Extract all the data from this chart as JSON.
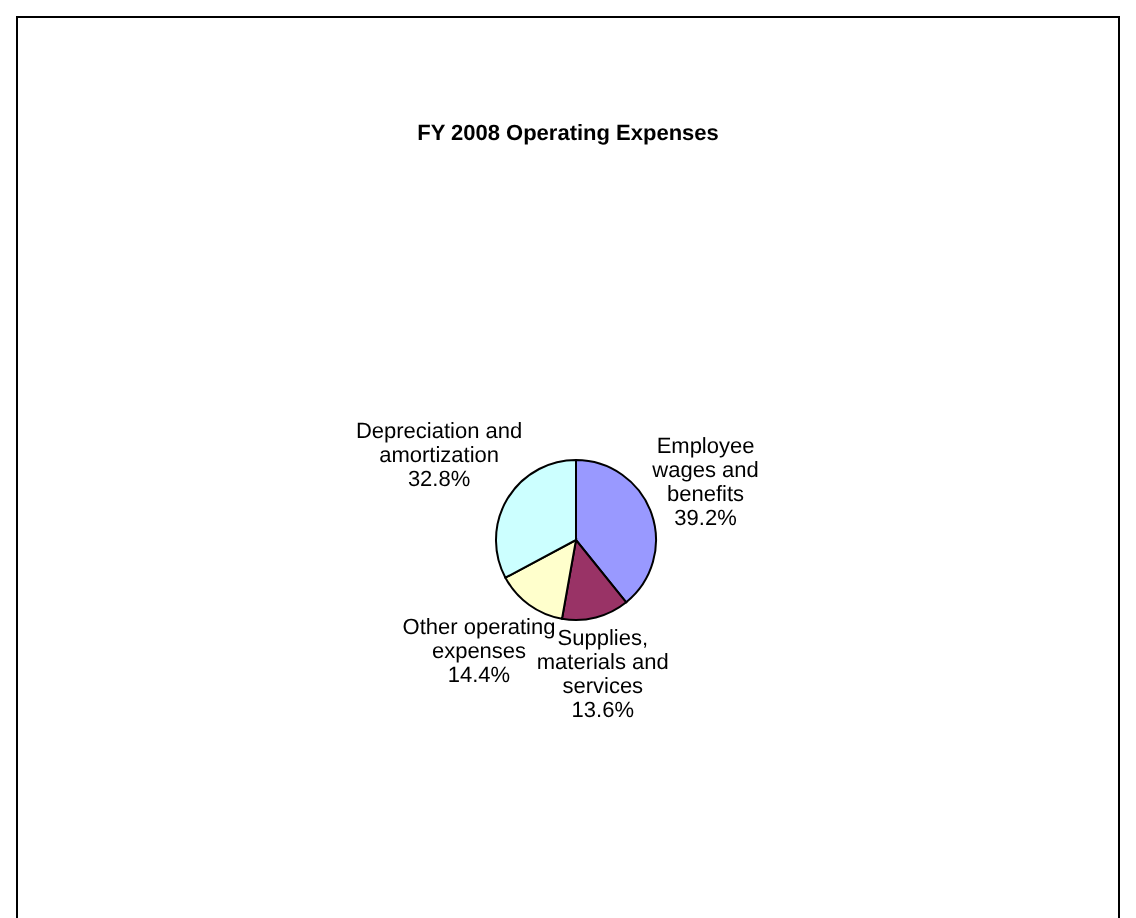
{
  "chart_data": {
    "type": "pie",
    "title": "FY 2008 Operating Expenses",
    "categories": [
      "Employee wages and benefits",
      "Supplies, materials and services",
      "Other operating expenses",
      "Depreciation and amortization"
    ],
    "values": [
      39.2,
      13.6,
      14.4,
      32.8
    ],
    "colors": [
      "#9999ff",
      "#993366",
      "#ffffcc",
      "#ccffff"
    ],
    "value_labels": [
      "39.2%",
      "13.6%",
      "14.4%",
      "32.8%"
    ],
    "legend": false
  }
}
